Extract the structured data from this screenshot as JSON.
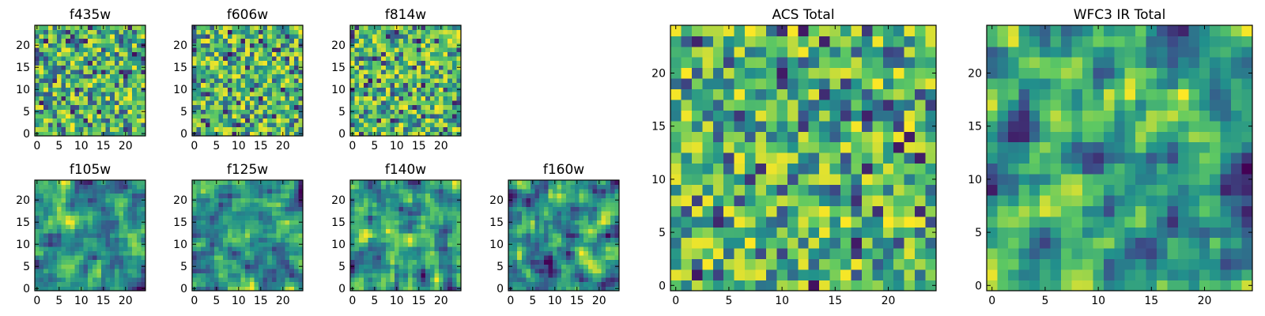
{
  "figure": {
    "colormap": "viridis",
    "colormap_stops": [
      "#440154",
      "#3b528b",
      "#21918c",
      "#5ec962",
      "#fde725"
    ]
  },
  "chart_data": [
    {
      "type": "heatmap",
      "title": "f435w",
      "grid_size": 25,
      "xlim": [
        0,
        24
      ],
      "ylim": [
        0,
        24
      ],
      "xticks": [
        0,
        5,
        10,
        15,
        20
      ],
      "yticks": [
        0,
        5,
        10,
        15,
        20
      ],
      "seed": 11,
      "smooth": 0,
      "range": [
        0.05,
        1.0
      ]
    },
    {
      "type": "heatmap",
      "title": "f606w",
      "grid_size": 25,
      "xlim": [
        0,
        24
      ],
      "ylim": [
        0,
        24
      ],
      "xticks": [
        0,
        5,
        10,
        15,
        20
      ],
      "yticks": [
        0,
        5,
        10,
        15,
        20
      ],
      "seed": 23,
      "smooth": 0,
      "range": [
        0.05,
        1.0
      ]
    },
    {
      "type": "heatmap",
      "title": "f814w",
      "grid_size": 25,
      "xlim": [
        0,
        24
      ],
      "ylim": [
        0,
        24
      ],
      "xticks": [
        0,
        5,
        10,
        15,
        20
      ],
      "yticks": [
        0,
        5,
        10,
        15,
        20
      ],
      "seed": 37,
      "smooth": 0,
      "range": [
        0.05,
        1.0
      ]
    },
    {
      "type": "heatmap",
      "title": "f105w",
      "grid_size": 25,
      "xlim": [
        0,
        24
      ],
      "ylim": [
        0,
        24
      ],
      "xticks": [
        0,
        5,
        10,
        15,
        20
      ],
      "yticks": [
        0,
        5,
        10,
        15,
        20
      ],
      "seed": 41,
      "smooth": 1,
      "range": [
        0.0,
        1.0
      ]
    },
    {
      "type": "heatmap",
      "title": "f125w",
      "grid_size": 25,
      "xlim": [
        0,
        24
      ],
      "ylim": [
        0,
        24
      ],
      "xticks": [
        0,
        5,
        10,
        15,
        20
      ],
      "yticks": [
        0,
        5,
        10,
        15,
        20
      ],
      "seed": 53,
      "smooth": 1,
      "range": [
        0.0,
        1.0
      ]
    },
    {
      "type": "heatmap",
      "title": "f140w",
      "grid_size": 25,
      "xlim": [
        0,
        24
      ],
      "ylim": [
        0,
        24
      ],
      "xticks": [
        0,
        5,
        10,
        15,
        20
      ],
      "yticks": [
        0,
        5,
        10,
        15,
        20
      ],
      "seed": 67,
      "smooth": 1,
      "range": [
        0.0,
        1.0
      ]
    },
    {
      "type": "heatmap",
      "title": "f160w",
      "grid_size": 25,
      "xlim": [
        0,
        24
      ],
      "ylim": [
        0,
        24
      ],
      "xticks": [
        0,
        5,
        10,
        15,
        20
      ],
      "yticks": [
        0,
        5,
        10,
        15,
        20
      ],
      "seed": 79,
      "smooth": 1,
      "range": [
        0.0,
        1.0
      ]
    },
    {
      "type": "heatmap",
      "title": "ACS Total",
      "grid_size": 25,
      "xlim": [
        0,
        24
      ],
      "ylim": [
        0,
        24
      ],
      "xticks": [
        0,
        5,
        10,
        15,
        20
      ],
      "yticks": [
        0,
        5,
        10,
        15,
        20
      ],
      "seed": 97,
      "smooth": 0,
      "range": [
        0.05,
        1.0
      ]
    },
    {
      "type": "heatmap",
      "title": "WFC3 IR Total",
      "grid_size": 25,
      "xlim": [
        0,
        24
      ],
      "ylim": [
        0,
        24
      ],
      "xticks": [
        0,
        5,
        10,
        15,
        20
      ],
      "yticks": [
        0,
        5,
        10,
        15,
        20
      ],
      "seed": 113,
      "smooth": 1,
      "range": [
        0.0,
        1.0
      ]
    }
  ]
}
